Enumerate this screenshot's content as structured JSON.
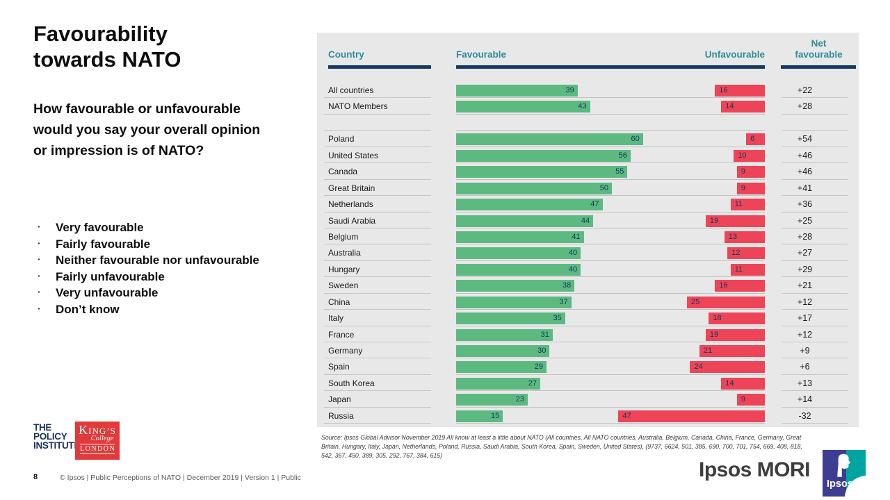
{
  "slide": {
    "title_lines": [
      "Favourability",
      "towards NATO"
    ],
    "question": "How favourable or unfavourable would you say your overall opinion or impression is of NATO?",
    "bullets": [
      "Very favourable",
      "Fairly favourable",
      "Neither favourable nor unfavourable",
      "Fairly unfavourable",
      "Very unfavourable",
      "Don’t know"
    ],
    "page_number": "8",
    "footer_text": "© Ipsos | Public Perceptions of NATO | December 2019 | Version 1 | Public"
  },
  "chart_data": {
    "type": "bar",
    "orientation": "horizontal-paired",
    "title": "Favourability towards NATO",
    "columns": {
      "country": "Country",
      "favourable": "Favourable",
      "unfavourable": "Unfavourable",
      "net_line1": "Net",
      "net_line2": "favourable"
    },
    "value_range": [
      0,
      100
    ],
    "rows": [
      {
        "country": "All countries",
        "favourable": 39,
        "unfavourable": 16,
        "net": "+22"
      },
      {
        "country": "NATO Members",
        "favourable": 43,
        "unfavourable": 14,
        "net": "+28"
      },
      {
        "spacer": true
      },
      {
        "country": "Poland",
        "favourable": 60,
        "unfavourable": 6,
        "net": "+54"
      },
      {
        "country": "United States",
        "favourable": 56,
        "unfavourable": 10,
        "net": "+46"
      },
      {
        "country": "Canada",
        "favourable": 55,
        "unfavourable": 9,
        "net": "+46"
      },
      {
        "country": "Great Britain",
        "favourable": 50,
        "unfavourable": 9,
        "net": "+41"
      },
      {
        "country": "Netherlands",
        "favourable": 47,
        "unfavourable": 11,
        "net": "+36"
      },
      {
        "country": "Saudi Arabia",
        "favourable": 44,
        "unfavourable": 19,
        "net": "+25"
      },
      {
        "country": "Belgium",
        "favourable": 41,
        "unfavourable": 13,
        "net": "+28"
      },
      {
        "country": "Australia",
        "favourable": 40,
        "unfavourable": 12,
        "net": "+27"
      },
      {
        "country": "Hungary",
        "favourable": 40,
        "unfavourable": 11,
        "net": "+29"
      },
      {
        "country": "Sweden",
        "favourable": 38,
        "unfavourable": 16,
        "net": "+21"
      },
      {
        "country": "China",
        "favourable": 37,
        "unfavourable": 25,
        "net": "+12"
      },
      {
        "country": "Italy",
        "favourable": 35,
        "unfavourable": 18,
        "net": "+17"
      },
      {
        "country": "France",
        "favourable": 31,
        "unfavourable": 19,
        "net": "+12"
      },
      {
        "country": "Germany",
        "favourable": 30,
        "unfavourable": 21,
        "net": "+9"
      },
      {
        "country": "Spain",
        "favourable": 29,
        "unfavourable": 24,
        "net": "+6"
      },
      {
        "country": "South Korea",
        "favourable": 27,
        "unfavourable": 14,
        "net": "+13"
      },
      {
        "country": "Japan",
        "favourable": 23,
        "unfavourable": 9,
        "net": "+14"
      },
      {
        "country": "Russia",
        "favourable": 15,
        "unfavourable": 47,
        "net": "-32"
      }
    ],
    "colors": {
      "favourable": "#5cba81",
      "unfavourable": "#ee4458",
      "header_text": "#2f8e97",
      "rule": "#13395e",
      "panel_background": "#e8e8e8",
      "bar_value_text": "#16365c"
    },
    "source": "Source: Ipsos Global Advisor November  2019 All know at least a little about NATO (All countries, All NATO  countries, Australia, Belgium, Canada, China, France, Germany,  Great Britain, Hungary, Italy, Japan, Netherlands, Poland, Russia, Saudi Arabia, South Korea, Spain, Sweden, United States), (9737, 6624, 501, 385, 690, 700, 701, 754, 669, 408, 818, 542, 367, 450, 389, 305, 292, 767, 384, 615)"
  },
  "logos": {
    "policy_institute_lines": [
      "THE",
      "POLICY",
      "INSTITUTE"
    ],
    "kings": {
      "line1_initial": "K",
      "line1_rest": "ING’S",
      "line2": "College",
      "line3": "LONDON"
    },
    "ipsos_mori": "Ipsos MORI",
    "ipsos_word": "Ipsos",
    "ipsos_blue": "#3d3e92",
    "ipsos_teal": "#00a5a1"
  }
}
